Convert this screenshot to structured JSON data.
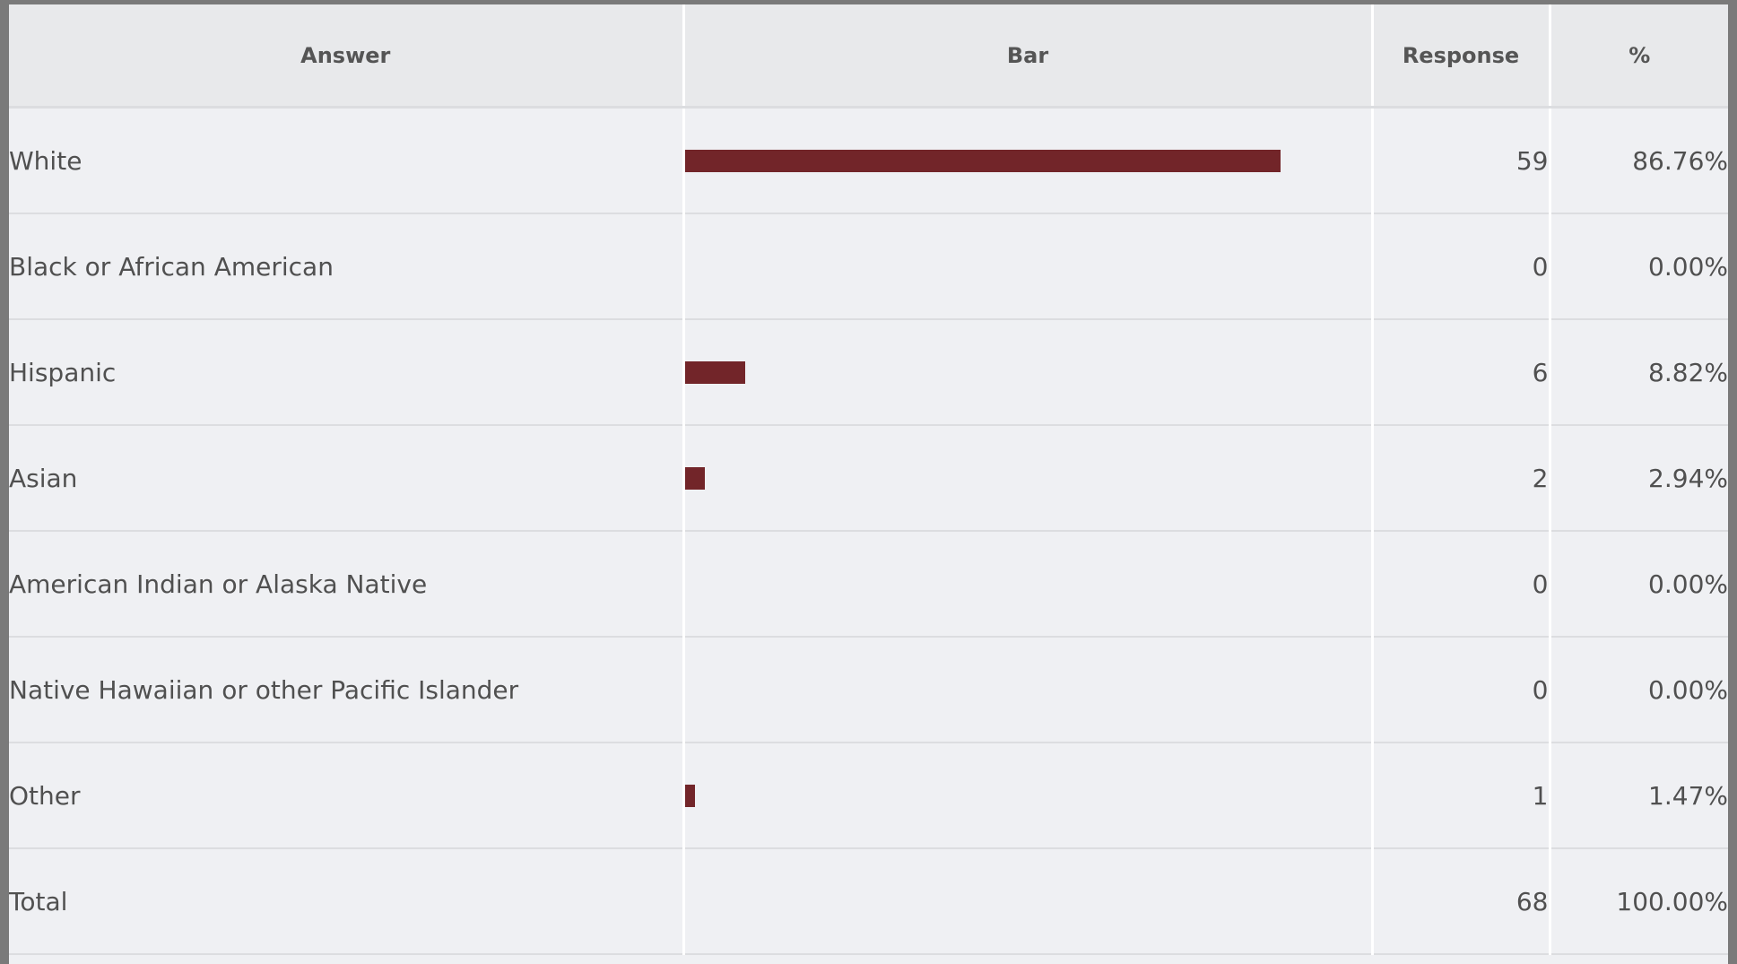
{
  "colors": {
    "bar": "#722529",
    "header_bg": "#e8e9eb",
    "row_bg": "#eff0f3",
    "text": "#505050"
  },
  "headers": {
    "answer": "Answer",
    "bar": "Bar",
    "response": "Response",
    "percent": "%"
  },
  "rows": [
    {
      "answer": "White",
      "response": "59",
      "percent": "86.76%",
      "bar_fraction": 0.8676
    },
    {
      "answer": "Black or African American",
      "response": "0",
      "percent": "0.00%",
      "bar_fraction": 0.0
    },
    {
      "answer": "Hispanic",
      "response": "6",
      "percent": "8.82%",
      "bar_fraction": 0.0882
    },
    {
      "answer": "Asian",
      "response": "2",
      "percent": "2.94%",
      "bar_fraction": 0.0294
    },
    {
      "answer": "American Indian or Alaska Native",
      "response": "0",
      "percent": "0.00%",
      "bar_fraction": 0.0
    },
    {
      "answer": "Native Hawaiian or other Pacific Islander",
      "response": "0",
      "percent": "0.00%",
      "bar_fraction": 0.0
    },
    {
      "answer": "Other",
      "response": "1",
      "percent": "1.47%",
      "bar_fraction": 0.0147
    }
  ],
  "total": {
    "answer": "Total",
    "response": "68",
    "percent": "100.00%"
  }
}
